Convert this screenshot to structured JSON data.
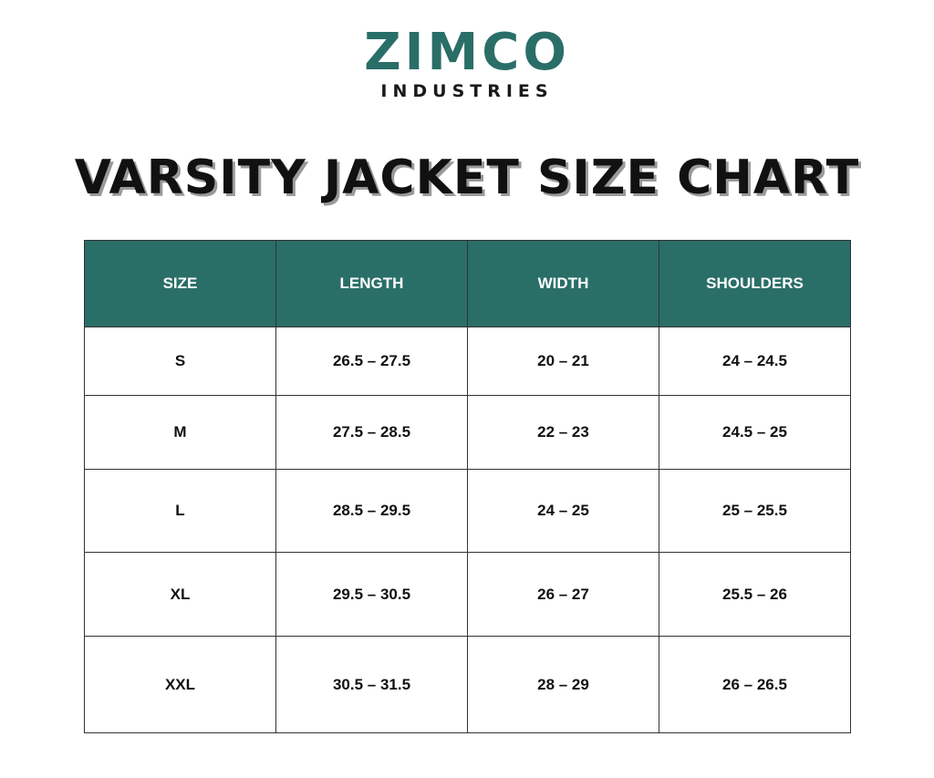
{
  "logo": {
    "name": "ZIMCO",
    "tagline": "INDUSTRIES"
  },
  "title": "VARSITY JACKET SIZE CHART",
  "table": {
    "header": [
      "SIZE",
      "LENGTH",
      "WIDTH",
      "SHOULDERS"
    ],
    "rows": [
      [
        "S",
        "26.5 – 27.5",
        "20 – 21",
        "24 – 24.5"
      ],
      [
        "M",
        "27.5 – 28.5",
        "22 – 23",
        "24.5 – 25"
      ],
      [
        "L",
        "28.5 – 29.5",
        "24 – 25",
        "25 – 25.5"
      ],
      [
        "XL",
        "29.5 – 30.5",
        "26 – 27",
        "25.5 – 26"
      ],
      [
        "XXL",
        "30.5 – 31.5",
        "28 – 29",
        "26 – 26.5"
      ]
    ]
  }
}
